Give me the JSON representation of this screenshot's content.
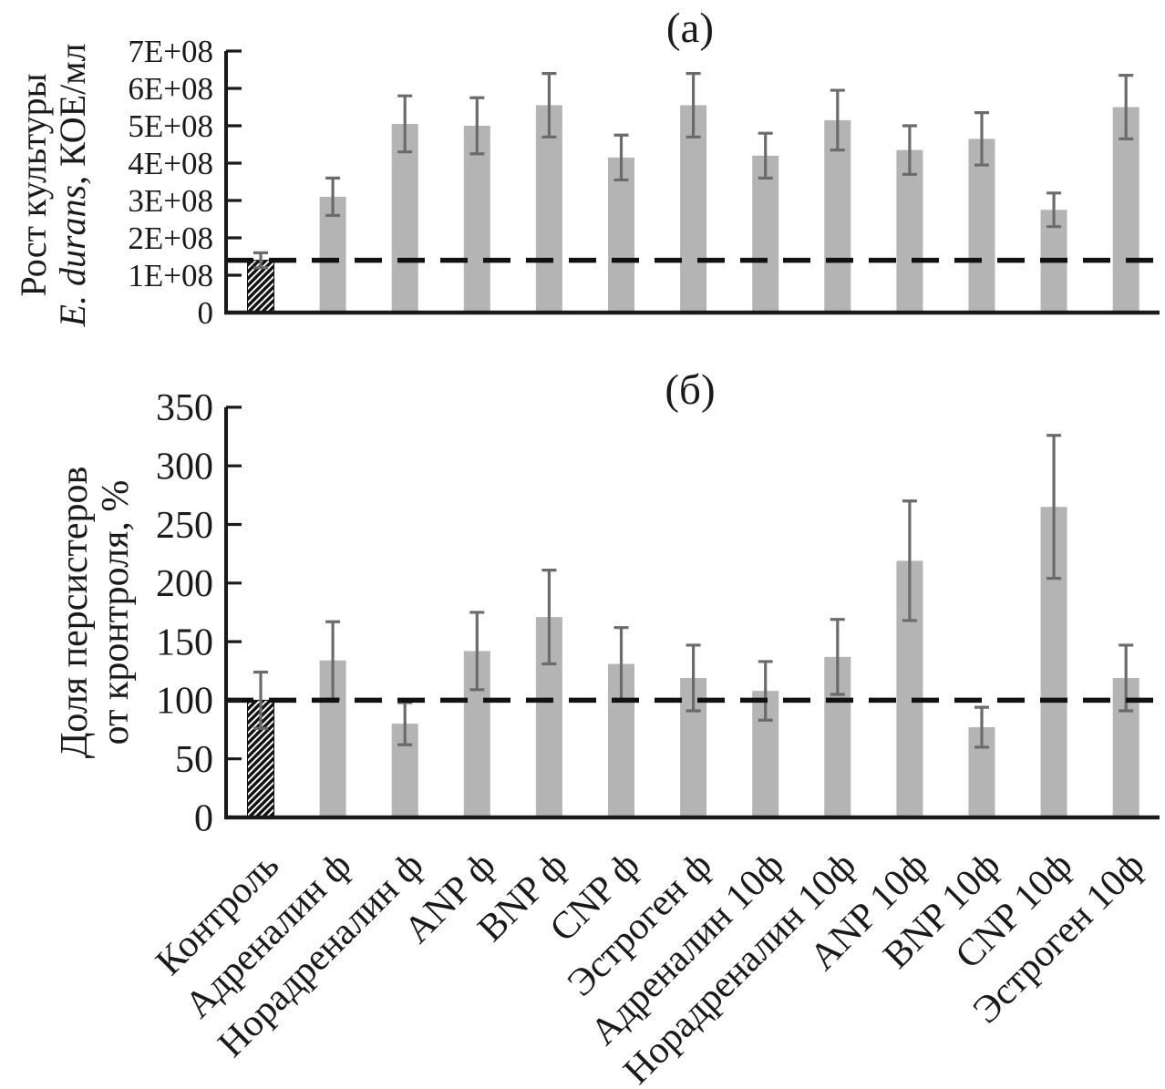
{
  "colors": {
    "background": "#ffffff",
    "bar_fill": "#b4b4b4",
    "error_bar": "#6b6b6b",
    "axis": "#1a1a1a",
    "dash_line": "#111111",
    "hatch_stroke": "#111111",
    "hatch_background": "#ffffff"
  },
  "categories": [
    "Контроль",
    "Адреналин ф",
    "Норадреналин ф",
    "ANP ф",
    "BNP ф",
    "CNP ф",
    "Эстроген ф",
    "Адреналин 10ф",
    "Норадреналин 10ф",
    "ANP 10ф",
    "BNP 10ф",
    "CNP 10ф",
    "Эстроген 10ф"
  ],
  "chart_data": [
    {
      "type": "bar",
      "panel": "a",
      "title": "(a)",
      "ylabel_line1": "Рост культуры",
      "ylabel_line2_italic": "E. durans",
      "ylabel_line2_rest": ", КОЕ/мл",
      "ylim": [
        0,
        700000000
      ],
      "ytick_step": 100000000,
      "ytick_labels": [
        "0",
        "1E+08",
        "2E+08",
        "3E+08",
        "4E+08",
        "5E+08",
        "6E+08",
        "7E+08"
      ],
      "reference_line_value": 140000000,
      "reference_line_style": "dashed",
      "grid": false,
      "legend": false,
      "hatched_category_index": 0,
      "values": [
        140000000,
        310000000,
        505000000,
        500000000,
        555000000,
        415000000,
        555000000,
        420000000,
        515000000,
        435000000,
        465000000,
        275000000,
        550000000
      ],
      "errors": [
        20000000,
        50000000,
        75000000,
        75000000,
        85000000,
        60000000,
        85000000,
        60000000,
        80000000,
        65000000,
        70000000,
        45000000,
        85000000
      ]
    },
    {
      "type": "bar",
      "panel": "б",
      "title": "(б)",
      "ylabel_line1": "Доля персистеров",
      "ylabel_line2": "от кронтроля, %",
      "ylim": [
        0,
        350
      ],
      "ytick_step": 50,
      "ytick_labels": [
        "0",
        "50",
        "100",
        "150",
        "200",
        "250",
        "300",
        "350"
      ],
      "reference_line_value": 100,
      "reference_line_style": "dashed",
      "grid": false,
      "legend": false,
      "hatched_category_index": 0,
      "values": [
        100,
        134,
        80,
        142,
        171,
        131,
        119,
        108,
        137,
        219,
        77,
        265,
        119
      ],
      "errors": [
        24,
        33,
        18,
        33,
        40,
        31,
        28,
        25,
        32,
        51,
        17,
        61,
        28
      ]
    }
  ]
}
